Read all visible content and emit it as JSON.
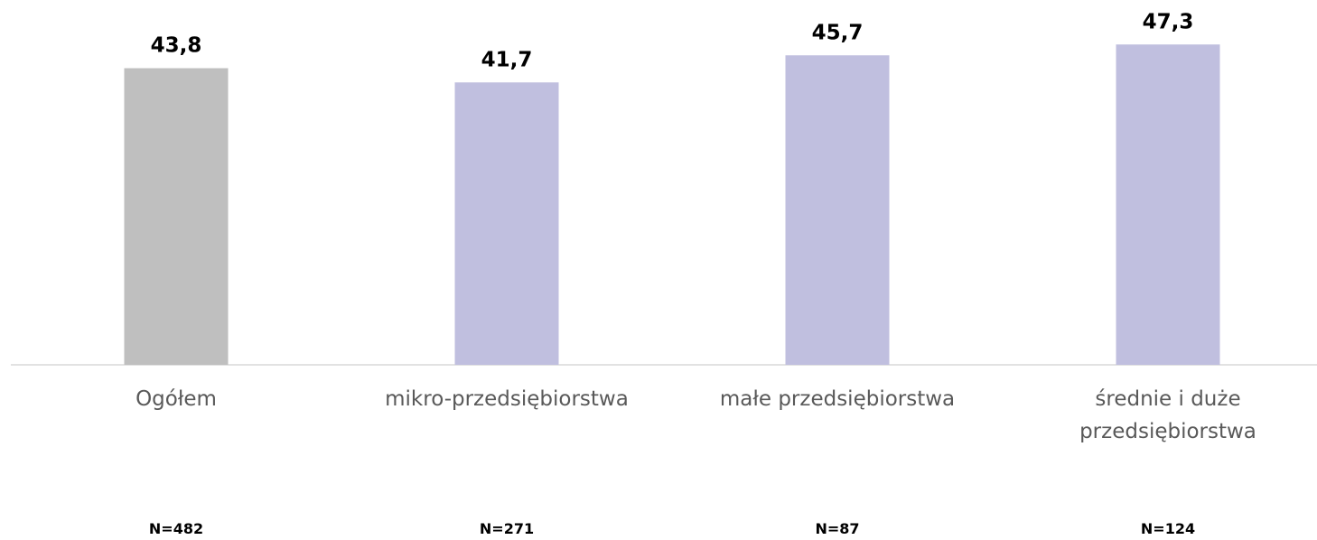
{
  "chart_data": {
    "type": "bar",
    "categories": [
      "Ogółem",
      "mikro-przedsiębiorstwa",
      "małe przedsiębiorstwa",
      "średnie i duże przedsiębiorstwa"
    ],
    "values": [
      43.8,
      41.7,
      45.7,
      47.3
    ],
    "value_labels": [
      "43,8",
      "41,7",
      "45,7",
      "47,3"
    ],
    "colors": [
      "#bfbfbf",
      "#c0bfdf",
      "#c0bfdf",
      "#c0bfdf"
    ],
    "sample_sizes": [
      "N=482",
      "N=271",
      "N=87",
      "N=124"
    ],
    "ylim": [
      0,
      50
    ]
  }
}
